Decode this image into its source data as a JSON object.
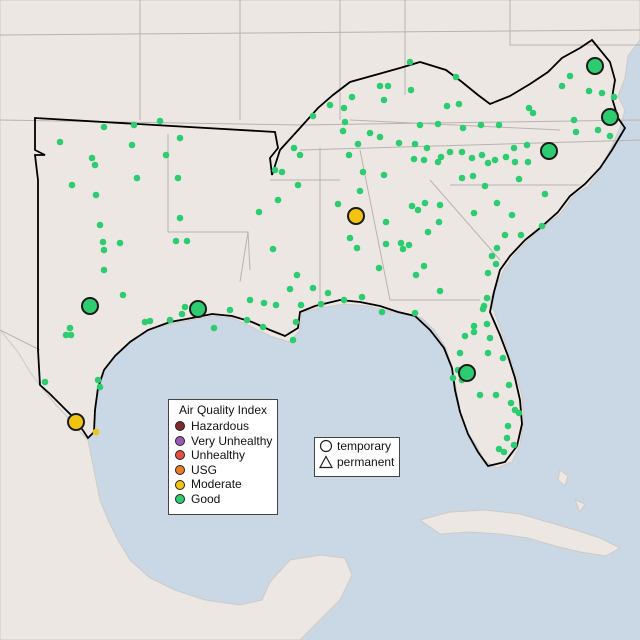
{
  "legend": {
    "title": "Air Quality Index",
    "items": [
      {
        "label": "Hazardous",
        "color": "#7e2a2a"
      },
      {
        "label": "Very Unhealthy",
        "color": "#9b59b6"
      },
      {
        "label": "Unhealthy",
        "color": "#e74c3c"
      },
      {
        "label": "USG",
        "color": "#e67e22"
      },
      {
        "label": "Moderate",
        "color": "#f1c40f"
      },
      {
        "label": "Good",
        "color": "#2ecc71"
      }
    ]
  },
  "monitor_type_legend": {
    "temporary": "temporary",
    "permanent": "permanent"
  },
  "map_style": {
    "land": "#ece7e3",
    "water": "#c9d8e4",
    "region_outline": "#000000",
    "border": "#b8b3b0"
  }
}
